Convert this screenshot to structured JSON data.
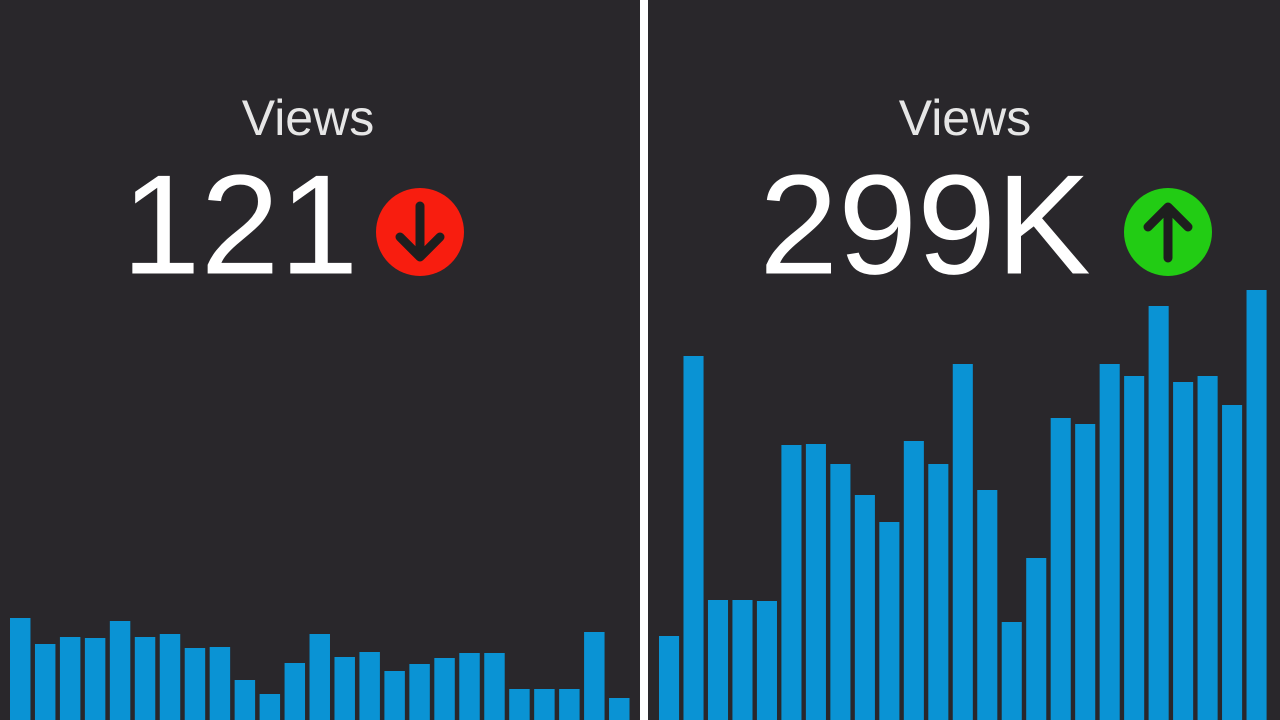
{
  "chart_data": [
    {
      "type": "bar",
      "title": "Views",
      "headline": "121",
      "trend": "down",
      "trend_color": "#f81d0f",
      "color": "#0a93d4",
      "values": [
        102,
        76,
        83,
        82,
        99,
        83,
        86,
        72,
        73,
        40,
        26,
        57,
        86,
        63,
        68,
        49,
        56,
        62,
        67,
        67,
        31,
        31,
        31,
        88,
        22
      ],
      "ylim": [
        0,
        720
      ]
    },
    {
      "type": "bar",
      "title": "Views",
      "headline": "299K",
      "trend": "up",
      "trend_color": "#22cc14",
      "color": "#0a93d4",
      "values": [
        84,
        364,
        120,
        120,
        119,
        275,
        276,
        256,
        225,
        198,
        279,
        256,
        356,
        230,
        98,
        162,
        302,
        296,
        356,
        344,
        414,
        338,
        344,
        315,
        430
      ],
      "ylim": [
        0,
        720
      ]
    }
  ]
}
